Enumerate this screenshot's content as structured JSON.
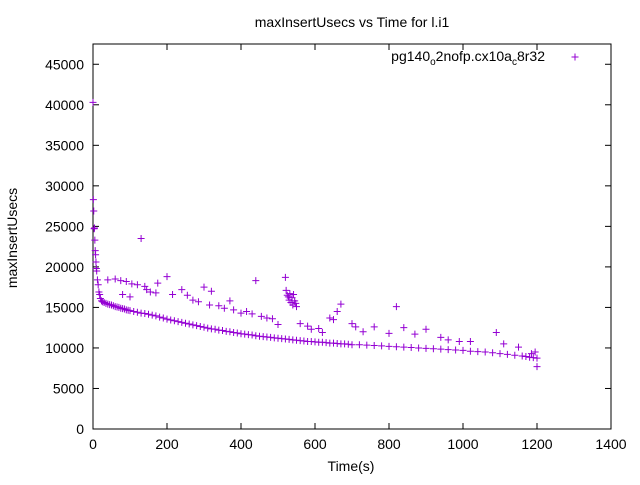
{
  "chart_data": {
    "type": "scatter",
    "title": "maxInsertUsecs vs Time for l.i1",
    "xlabel": "Time(s)",
    "ylabel": "maxInsertUsecs",
    "xlim": [
      0,
      1400
    ],
    "ylim": [
      0,
      47500
    ],
    "xticks": [
      "0",
      "200",
      "400",
      "600",
      "800",
      "1000",
      "1200",
      "1400"
    ],
    "yticks": [
      "0",
      "5000",
      "10000",
      "15000",
      "20000",
      "25000",
      "30000",
      "35000",
      "40000",
      "45000"
    ],
    "grid": false,
    "legend_position": "top-right",
    "marker": "+",
    "series": [
      {
        "name_parts": [
          "pg140",
          "o",
          "2nofp.cx10a",
          "c",
          "8r32"
        ],
        "color": "#9400d3",
        "points": [
          [
            0,
            40300
          ],
          [
            1,
            28300
          ],
          [
            2,
            26900
          ],
          [
            3,
            24700
          ],
          [
            4,
            24800
          ],
          [
            5,
            23300
          ],
          [
            6,
            22000
          ],
          [
            7,
            21500
          ],
          [
            8,
            20600
          ],
          [
            9,
            19800
          ],
          [
            10,
            19500
          ],
          [
            12,
            18400
          ],
          [
            14,
            17800
          ],
          [
            16,
            16900
          ],
          [
            18,
            16600
          ],
          [
            20,
            16100
          ],
          [
            23,
            15800
          ],
          [
            26,
            15700
          ],
          [
            30,
            15600
          ],
          [
            35,
            15500
          ],
          [
            40,
            15400
          ],
          [
            45,
            15350
          ],
          [
            50,
            15300
          ],
          [
            55,
            15200
          ],
          [
            60,
            15100
          ],
          [
            65,
            15050
          ],
          [
            70,
            15000
          ],
          [
            75,
            14900
          ],
          [
            80,
            14850
          ],
          [
            85,
            14800
          ],
          [
            90,
            14700
          ],
          [
            95,
            14650
          ],
          [
            100,
            14600
          ],
          [
            110,
            14500
          ],
          [
            120,
            14400
          ],
          [
            130,
            14300
          ],
          [
            140,
            14250
          ],
          [
            150,
            14150
          ],
          [
            160,
            14050
          ],
          [
            170,
            13950
          ],
          [
            180,
            13800
          ],
          [
            190,
            13700
          ],
          [
            200,
            13550
          ],
          [
            210,
            13450
          ],
          [
            220,
            13350
          ],
          [
            230,
            13250
          ],
          [
            240,
            13150
          ],
          [
            250,
            13050
          ],
          [
            260,
            12950
          ],
          [
            270,
            12850
          ],
          [
            280,
            12750
          ],
          [
            290,
            12650
          ],
          [
            300,
            12550
          ],
          [
            310,
            12450
          ],
          [
            320,
            12350
          ],
          [
            330,
            12300
          ],
          [
            340,
            12200
          ],
          [
            350,
            12150
          ],
          [
            360,
            12050
          ],
          [
            370,
            12000
          ],
          [
            380,
            11900
          ],
          [
            390,
            11850
          ],
          [
            400,
            11750
          ],
          [
            410,
            11700
          ],
          [
            420,
            11650
          ],
          [
            430,
            11600
          ],
          [
            440,
            11500
          ],
          [
            450,
            11450
          ],
          [
            460,
            11400
          ],
          [
            470,
            11350
          ],
          [
            480,
            11300
          ],
          [
            490,
            11250
          ],
          [
            500,
            11200
          ],
          [
            510,
            11150
          ],
          [
            520,
            11100
          ],
          [
            530,
            11050
          ],
          [
            540,
            11000
          ],
          [
            550,
            10950
          ],
          [
            560,
            10900
          ],
          [
            570,
            10850
          ],
          [
            580,
            10800
          ],
          [
            590,
            10800
          ],
          [
            600,
            10750
          ],
          [
            610,
            10700
          ],
          [
            620,
            10700
          ],
          [
            630,
            10650
          ],
          [
            640,
            10600
          ],
          [
            650,
            10600
          ],
          [
            660,
            10550
          ],
          [
            670,
            10500
          ],
          [
            680,
            10500
          ],
          [
            690,
            10450
          ],
          [
            700,
            10400
          ],
          [
            720,
            10400
          ],
          [
            740,
            10350
          ],
          [
            760,
            10300
          ],
          [
            780,
            10250
          ],
          [
            800,
            10200
          ],
          [
            820,
            10150
          ],
          [
            840,
            10100
          ],
          [
            860,
            10050
          ],
          [
            880,
            10000
          ],
          [
            900,
            9950
          ],
          [
            920,
            9900
          ],
          [
            940,
            9850
          ],
          [
            960,
            9800
          ],
          [
            980,
            9750
          ],
          [
            1000,
            9700
          ],
          [
            1020,
            9600
          ],
          [
            1040,
            9550
          ],
          [
            1060,
            9500
          ],
          [
            1080,
            9400
          ],
          [
            1100,
            9300
          ],
          [
            1120,
            9200
          ],
          [
            1140,
            9100
          ],
          [
            1160,
            9000
          ],
          [
            1170,
            8950
          ],
          [
            1180,
            8850
          ],
          [
            1190,
            8800
          ],
          [
            1200,
            8750
          ],
          [
            1200,
            7700
          ],
          [
            1195,
            9500
          ],
          [
            1185,
            9300
          ],
          [
            40,
            18400
          ],
          [
            60,
            18500
          ],
          [
            75,
            18300
          ],
          [
            90,
            18200
          ],
          [
            105,
            17900
          ],
          [
            120,
            17800
          ],
          [
            80,
            16600
          ],
          [
            100,
            16300
          ],
          [
            130,
            23500
          ],
          [
            140,
            17600
          ],
          [
            145,
            17200
          ],
          [
            155,
            16900
          ],
          [
            170,
            16800
          ],
          [
            175,
            18000
          ],
          [
            200,
            18800
          ],
          [
            215,
            16600
          ],
          [
            240,
            17200
          ],
          [
            255,
            16500
          ],
          [
            270,
            15900
          ],
          [
            285,
            15700
          ],
          [
            300,
            17500
          ],
          [
            315,
            15300
          ],
          [
            320,
            17000
          ],
          [
            340,
            15200
          ],
          [
            355,
            14900
          ],
          [
            370,
            15800
          ],
          [
            380,
            14700
          ],
          [
            400,
            14300
          ],
          [
            415,
            14500
          ],
          [
            430,
            14200
          ],
          [
            440,
            18300
          ],
          [
            455,
            13900
          ],
          [
            470,
            13700
          ],
          [
            485,
            13600
          ],
          [
            500,
            12900
          ],
          [
            520,
            18700
          ],
          [
            522,
            17100
          ],
          [
            525,
            16500
          ],
          [
            528,
            16300
          ],
          [
            530,
            15900
          ],
          [
            532,
            16700
          ],
          [
            535,
            15600
          ],
          [
            538,
            16200
          ],
          [
            540,
            15300
          ],
          [
            542,
            16600
          ],
          [
            545,
            15800
          ],
          [
            548,
            15500
          ],
          [
            550,
            15100
          ],
          [
            560,
            13000
          ],
          [
            580,
            12700
          ],
          [
            590,
            12300
          ],
          [
            610,
            12400
          ],
          [
            620,
            11900
          ],
          [
            640,
            13700
          ],
          [
            650,
            13500
          ],
          [
            660,
            14500
          ],
          [
            670,
            15400
          ],
          [
            700,
            13000
          ],
          [
            710,
            12600
          ],
          [
            730,
            12000
          ],
          [
            760,
            12600
          ],
          [
            800,
            11800
          ],
          [
            820,
            15100
          ],
          [
            840,
            12500
          ],
          [
            870,
            11700
          ],
          [
            900,
            12300
          ],
          [
            940,
            11300
          ],
          [
            960,
            11000
          ],
          [
            990,
            10800
          ],
          [
            1020,
            10800
          ],
          [
            1090,
            11900
          ],
          [
            1110,
            10500
          ],
          [
            1150,
            10100
          ]
        ]
      }
    ]
  }
}
